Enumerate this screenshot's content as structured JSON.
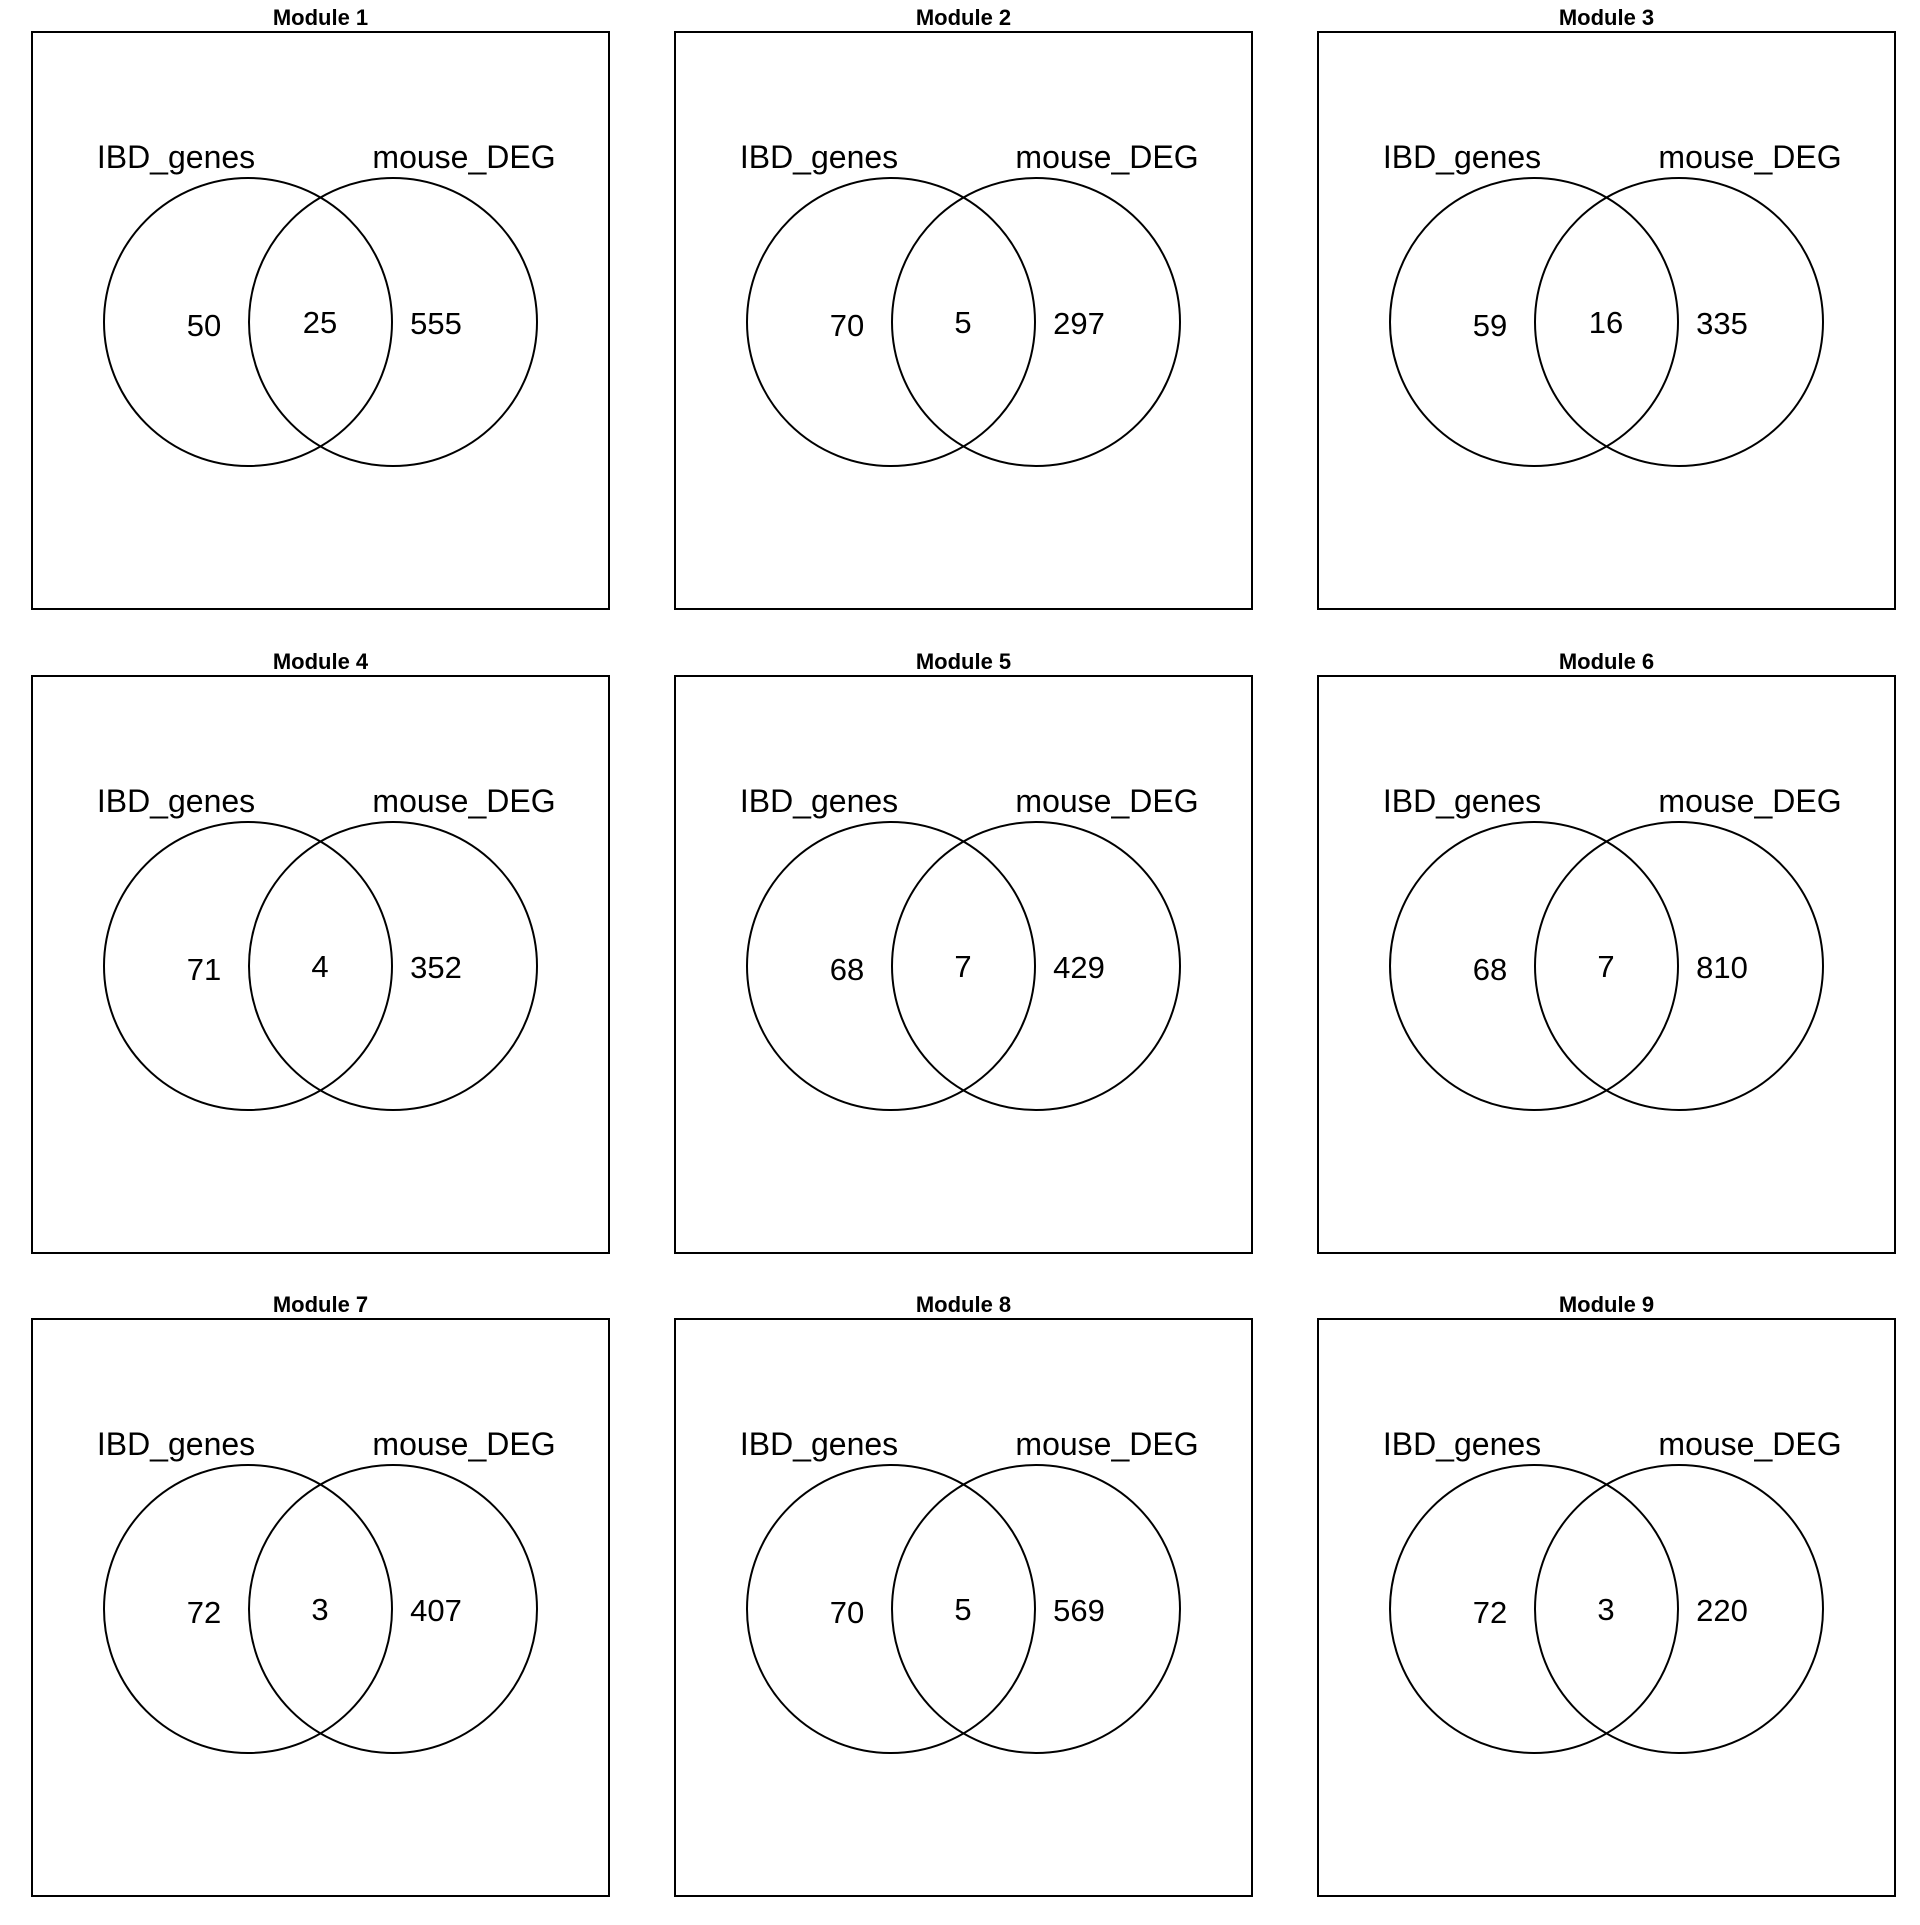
{
  "set_labels": {
    "left": "IBD_genes",
    "right": "mouse_DEG"
  },
  "modules": [
    {
      "title": "Module 1",
      "left_only": "50",
      "overlap": "25",
      "right_only": "555"
    },
    {
      "title": "Module 2",
      "left_only": "70",
      "overlap": "5",
      "right_only": "297"
    },
    {
      "title": "Module 3",
      "left_only": "59",
      "overlap": "16",
      "right_only": "335"
    },
    {
      "title": "Module 4",
      "left_only": "71",
      "overlap": "4",
      "right_only": "352"
    },
    {
      "title": "Module 5",
      "left_only": "68",
      "overlap": "7",
      "right_only": "429"
    },
    {
      "title": "Module 6",
      "left_only": "68",
      "overlap": "7",
      "right_only": "810"
    },
    {
      "title": "Module 7",
      "left_only": "72",
      "overlap": "3",
      "right_only": "407"
    },
    {
      "title": "Module 8",
      "left_only": "70",
      "overlap": "5",
      "right_only": "569"
    },
    {
      "title": "Module 9",
      "left_only": "72",
      "overlap": "3",
      "right_only": "220"
    }
  ]
}
